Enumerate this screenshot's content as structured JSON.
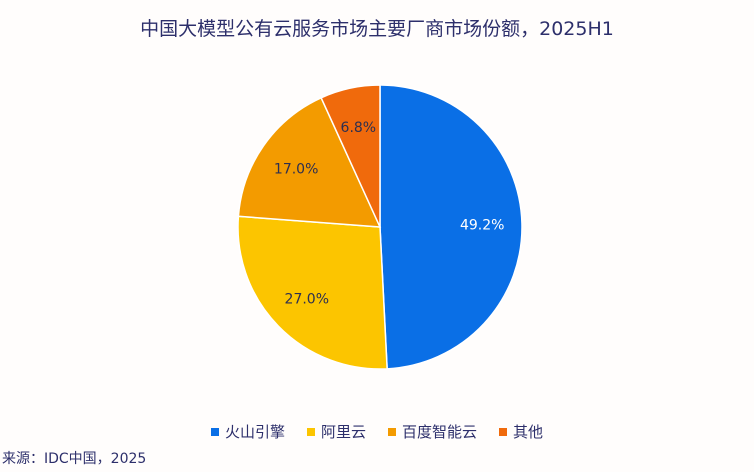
{
  "chart_data": {
    "type": "pie",
    "title": "中国大模型公有云服务市场主要厂商市场份额，2025H1",
    "categories": [
      "火山引擎",
      "阿里云",
      "百度智能云",
      "其他"
    ],
    "values": [
      49.2,
      27.0,
      17.0,
      6.8
    ],
    "labels": [
      "49.2%",
      "27.0%",
      "17.0%",
      "6.8%"
    ],
    "colors": [
      "#0a6fe6",
      "#fcc500",
      "#f39b00",
      "#f06a0c"
    ],
    "label_colors": [
      "#ffffff",
      "#2d2f50",
      "#2d2f50",
      "#2d2f50"
    ],
    "start": "top, clockwise",
    "legend_position": "bottom"
  },
  "source": "来源：IDC中国，2025"
}
